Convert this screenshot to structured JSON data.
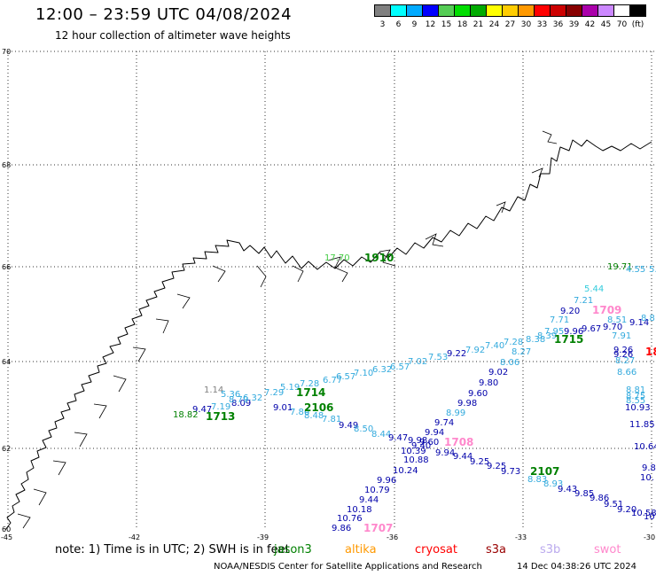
{
  "header": {
    "title": "12:00 – 23:59 UTC 04/08/2024",
    "subtitle": "12 hour collection of altimeter wave heights"
  },
  "legend": {
    "colors": [
      "#808080",
      "#00ffff",
      "#00aaff",
      "#0000ff",
      "#55cc55",
      "#00dd00",
      "#00aa00",
      "#ffff00",
      "#ffcc00",
      "#ff9900",
      "#ff0000",
      "#cc0000",
      "#880000",
      "#aa00aa",
      "#cc88ff",
      "#ffffff",
      "#000000"
    ],
    "labels": [
      "3",
      "6",
      "9",
      "12",
      "15",
      "18",
      "21",
      "24",
      "27",
      "30",
      "33",
      "36",
      "39",
      "42",
      "45",
      "70",
      "(ft)"
    ]
  },
  "axes": {
    "lat_labels": [
      "70",
      "68",
      "66",
      "64",
      "62",
      "60"
    ],
    "lon_labels": [
      "-45",
      "-42",
      "-39",
      "-36",
      "-33",
      "-30"
    ]
  },
  "satellite_colors": {
    "jason3": "#008000",
    "altika": "#ff9900",
    "cryosat": "#ff0000",
    "s3a": "#990000",
    "s3b": "#bbaaee",
    "swot": "#ff88cc"
  },
  "wave_labels": [
    {
      "t": "17.70",
      "c": "#44cc44"
    },
    {
      "t": "19.71",
      "c": "#008000"
    },
    {
      "t": "4.55",
      "c": "#33aadd"
    },
    {
      "t": "5.5",
      "c": "#33aadd"
    },
    {
      "t": "5.44",
      "c": "#33ccdd"
    },
    {
      "t": "7.21",
      "c": "#33aadd"
    },
    {
      "t": "9.20",
      "c": "#0000aa"
    },
    {
      "t": "7.71",
      "c": "#33aadd"
    },
    {
      "t": "8.51",
      "c": "#33aadd"
    },
    {
      "t": "9.14",
      "c": "#0000aa"
    },
    {
      "t": "8.8",
      "c": "#33aadd"
    },
    {
      "t": "7.95",
      "c": "#33aadd"
    },
    {
      "t": "9.96",
      "c": "#0000aa"
    },
    {
      "t": "9.67",
      "c": "#0000aa"
    },
    {
      "t": "9.70",
      "c": "#0000aa"
    },
    {
      "t": "7.91",
      "c": "#33aadd"
    },
    {
      "t": "7.28",
      "c": "#33aadd"
    },
    {
      "t": "8.38",
      "c": "#33aadd"
    },
    {
      "t": "8.39",
      "c": "#33aadd"
    },
    {
      "t": "9.26",
      "c": "#0000aa"
    },
    {
      "t": "8.27",
      "c": "#33aadd"
    },
    {
      "t": "9.26",
      "c": "#0000aa"
    },
    {
      "t": "7.40",
      "c": "#33aadd"
    },
    {
      "t": "7.92",
      "c": "#33aadd"
    },
    {
      "t": "8.27",
      "c": "#33aadd"
    },
    {
      "t": "9.22",
      "c": "#0000aa"
    },
    {
      "t": "8.66",
      "c": "#33aadd"
    },
    {
      "t": "7.53",
      "c": "#33aadd"
    },
    {
      "t": "7.02",
      "c": "#33aadd"
    },
    {
      "t": "8.06",
      "c": "#33aadd"
    },
    {
      "t": "6.57",
      "c": "#33aadd"
    },
    {
      "t": "6.32",
      "c": "#33aadd"
    },
    {
      "t": "9.02",
      "c": "#0000aa"
    },
    {
      "t": "7.10",
      "c": "#33aadd"
    },
    {
      "t": "9.80",
      "c": "#0000aa"
    },
    {
      "t": "8.81",
      "c": "#33aadd"
    },
    {
      "t": "6.77",
      "c": "#33aadd"
    },
    {
      "t": "6.57",
      "c": "#33aadd"
    },
    {
      "t": "8.75",
      "c": "#33aadd"
    },
    {
      "t": "8.55",
      "c": "#33aadd"
    },
    {
      "t": "5.19",
      "c": "#33aadd"
    },
    {
      "t": "7.28",
      "c": "#33aadd"
    },
    {
      "t": "9.60",
      "c": "#0000aa"
    },
    {
      "t": "10.93",
      "c": "#0000aa"
    },
    {
      "t": "1.14",
      "c": "#808080"
    },
    {
      "t": "5.36",
      "c": "#33aadd"
    },
    {
      "t": "9.98",
      "c": "#0000aa"
    },
    {
      "t": "7.29",
      "c": "#33aadd"
    },
    {
      "t": "6.32",
      "c": "#33aadd"
    },
    {
      "t": "8.09",
      "c": "#0000aa"
    },
    {
      "t": "8.79",
      "c": "#33aadd"
    },
    {
      "t": "7.19",
      "c": "#33aadd"
    },
    {
      "t": "9.01",
      "c": "#0000aa"
    },
    {
      "t": "7.86",
      "c": "#33aadd"
    },
    {
      "t": "8.48",
      "c": "#33aadd"
    },
    {
      "t": "8.99",
      "c": "#33aadd"
    },
    {
      "t": "7.81",
      "c": "#33aadd"
    },
    {
      "t": "9.47",
      "c": "#0000aa"
    },
    {
      "t": "18.82",
      "c": "#008000"
    },
    {
      "t": "9.74",
      "c": "#0000aa"
    },
    {
      "t": "11.85",
      "c": "#0000aa"
    },
    {
      "t": "9.49",
      "c": "#0000aa"
    },
    {
      "t": "8.50",
      "c": "#33aadd"
    },
    {
      "t": "9.94",
      "c": "#0000aa"
    },
    {
      "t": "8.44",
      "c": "#33aadd"
    },
    {
      "t": "9.47",
      "c": "#0000aa"
    },
    {
      "t": "9.98",
      "c": "#0000aa"
    },
    {
      "t": "9.60",
      "c": "#0000aa"
    },
    {
      "t": "10.64",
      "c": "#0000aa"
    },
    {
      "t": "10.39",
      "c": "#0000aa"
    },
    {
      "t": "9.40",
      "c": "#0000aa"
    },
    {
      "t": "9.94",
      "c": "#0000aa"
    },
    {
      "t": "9.44",
      "c": "#0000aa"
    },
    {
      "t": "10.88",
      "c": "#0000aa"
    },
    {
      "t": "9.25",
      "c": "#0000aa"
    },
    {
      "t": "9.25",
      "c": "#0000aa"
    },
    {
      "t": "9.8",
      "c": "#0000aa"
    },
    {
      "t": "9.73",
      "c": "#0000aa"
    },
    {
      "t": "10.24",
      "c": "#0000aa"
    },
    {
      "t": "8.83",
      "c": "#33aadd"
    },
    {
      "t": "10.",
      "c": "#0000aa"
    },
    {
      "t": "9.96",
      "c": "#0000aa"
    },
    {
      "t": "8.93",
      "c": "#33aadd"
    },
    {
      "t": "10.79",
      "c": "#0000aa"
    },
    {
      "t": "9.43",
      "c": "#0000aa"
    },
    {
      "t": "9.85",
      "c": "#0000aa"
    },
    {
      "t": "9.44",
      "c": "#0000aa"
    },
    {
      "t": "9.86",
      "c": "#0000aa"
    },
    {
      "t": "9.51",
      "c": "#0000aa"
    },
    {
      "t": "10.18",
      "c": "#0000aa"
    },
    {
      "t": "9.20",
      "c": "#0000aa"
    },
    {
      "t": "10.58",
      "c": "#0000aa"
    },
    {
      "t": "10.76",
      "c": "#0000aa"
    },
    {
      "t": "10",
      "c": "#0000aa"
    },
    {
      "t": "9.86",
      "c": "#0000aa"
    }
  ],
  "sat_labels": [
    {
      "t": "1910",
      "c": "#008000"
    },
    {
      "t": "1709",
      "c": "#ff88cc"
    },
    {
      "t": "1715",
      "c": "#008000"
    },
    {
      "t": "18",
      "c": "#ff0000"
    },
    {
      "t": "1714",
      "c": "#008000"
    },
    {
      "t": "2106",
      "c": "#008000"
    },
    {
      "t": "1713",
      "c": "#008000"
    },
    {
      "t": "1708",
      "c": "#ff88cc"
    },
    {
      "t": "2107",
      "c": "#008000"
    },
    {
      "t": "1707",
      "c": "#ff88cc"
    }
  ],
  "note": {
    "text": "note:  1) Time is in UTC;  2) SWH is in feet",
    "sat_names": [
      "jason3",
      "altika",
      "cryosat",
      "s3a",
      "s3b",
      "swot"
    ]
  },
  "footer": {
    "credit": "NOAA/NESDIS Center for Satellite Applications and Research",
    "generated": "14 Dec 04:38:26 UTC 2024"
  }
}
